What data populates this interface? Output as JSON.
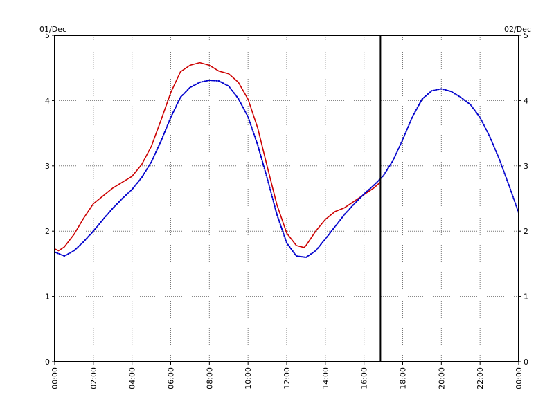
{
  "chart_data": {
    "type": "line",
    "title": "",
    "xlabel": "",
    "ylabel": "",
    "x_unit": "hours",
    "xlim": [
      0,
      24
    ],
    "ylim": [
      0,
      5
    ],
    "grid": true,
    "grid_style": "dotted",
    "x_ticks": [
      "00:00",
      "02:00",
      "04:00",
      "06:00",
      "08:00",
      "10:00",
      "12:00",
      "14:00",
      "16:00",
      "18:00",
      "20:00",
      "22:00",
      "00:00"
    ],
    "y_ticks": [
      "0",
      "1",
      "2",
      "3",
      "4",
      "5"
    ],
    "date_left": "01/Dec",
    "date_right": "02/Dec",
    "marker_time": 16.85,
    "series": [
      {
        "color": "#cc0000",
        "style": "solid",
        "x": [
          0,
          0.2,
          0.5,
          1.0,
          1.5,
          2.0,
          2.5,
          3.0,
          3.5,
          4.0,
          4.5,
          5.0,
          5.5,
          6.0,
          6.5,
          7.0,
          7.5,
          8.0,
          8.5,
          9.0,
          9.5,
          10.0,
          10.5,
          11.0,
          11.5,
          12.0,
          12.5,
          12.9,
          13.0,
          13.5,
          14.0,
          14.5,
          15.0,
          15.5,
          16.0,
          16.5,
          16.85
        ],
        "y": [
          1.73,
          1.7,
          1.76,
          1.95,
          2.2,
          2.42,
          2.54,
          2.66,
          2.75,
          2.84,
          3.02,
          3.3,
          3.7,
          4.12,
          4.44,
          4.54,
          4.58,
          4.54,
          4.45,
          4.41,
          4.28,
          4.02,
          3.58,
          2.98,
          2.4,
          1.97,
          1.78,
          1.75,
          1.78,
          2.0,
          2.18,
          2.3,
          2.36,
          2.46,
          2.56,
          2.66,
          2.75
        ]
      },
      {
        "color": "#0000cc",
        "style": "dotted",
        "x": [
          0,
          0.5,
          1.0,
          1.5,
          2.0,
          2.5,
          3.0,
          3.5,
          4.0,
          4.5,
          5.0,
          5.5,
          6.0,
          6.5,
          7.0,
          7.5,
          8.0,
          8.5,
          9.0,
          9.5,
          10.0,
          10.5,
          11.0,
          11.5,
          12.0,
          12.5,
          13.0,
          13.5,
          14.0,
          14.5,
          15.0,
          15.5,
          16.0,
          16.5,
          17.0,
          17.5,
          18.0,
          18.5,
          19.0,
          19.5,
          20.0,
          20.5,
          21.0,
          21.5,
          22.0,
          22.5,
          23.0,
          23.5,
          24.0
        ],
        "y": [
          1.68,
          1.62,
          1.7,
          1.84,
          2.0,
          2.18,
          2.35,
          2.5,
          2.64,
          2.82,
          3.06,
          3.38,
          3.74,
          4.05,
          4.2,
          4.28,
          4.31,
          4.3,
          4.22,
          4.03,
          3.75,
          3.32,
          2.8,
          2.25,
          1.82,
          1.62,
          1.6,
          1.7,
          1.88,
          2.07,
          2.26,
          2.42,
          2.57,
          2.7,
          2.85,
          3.08,
          3.4,
          3.75,
          4.02,
          4.15,
          4.18,
          4.14,
          4.05,
          3.94,
          3.74,
          3.45,
          3.1,
          2.7,
          2.28
        ]
      }
    ]
  }
}
